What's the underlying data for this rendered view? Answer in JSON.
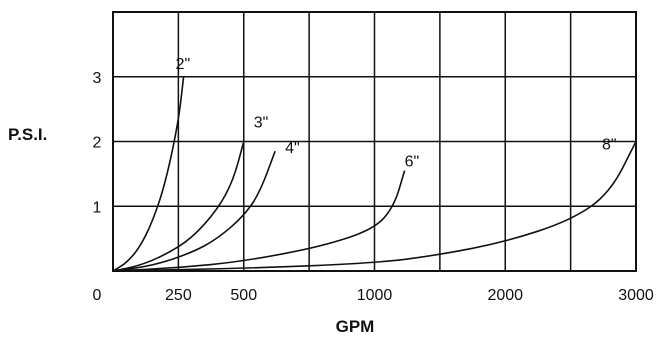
{
  "chart_data": {
    "type": "line",
    "title": "",
    "xlabel": "GPM",
    "ylabel": "P.S.I.",
    "grid": true,
    "legend": "none",
    "x_tick_labels": [
      "0",
      "250",
      "500",
      "1000",
      "2000",
      "3000"
    ],
    "y_tick_labels": [
      "1",
      "2",
      "3"
    ],
    "ylim": [
      0,
      4
    ],
    "series": [
      {
        "name": "2\"",
        "x": [
          0,
          50,
          100,
          150,
          200,
          250,
          270
        ],
        "y": [
          0,
          0.12,
          0.35,
          0.75,
          1.35,
          2.3,
          3.0
        ]
      },
      {
        "name": "3\"",
        "x": [
          0,
          100,
          200,
          300,
          400,
          460,
          500
        ],
        "y": [
          0,
          0.08,
          0.25,
          0.5,
          0.95,
          1.4,
          2.0
        ]
      },
      {
        "name": "4\"",
        "x": [
          0,
          150,
          300,
          400,
          500,
          560,
          620
        ],
        "y": [
          0,
          0.08,
          0.28,
          0.5,
          0.85,
          1.2,
          1.85
        ]
      },
      {
        "name": "6\"",
        "x": [
          0,
          250,
          500,
          800,
          1000,
          1150,
          1230
        ],
        "y": [
          0,
          0.05,
          0.15,
          0.38,
          0.65,
          1.0,
          1.55
        ]
      },
      {
        "name": "8\"",
        "x": [
          0,
          500,
          1000,
          1500,
          2000,
          2500,
          2800,
          3000
        ],
        "y": [
          0,
          0.04,
          0.12,
          0.25,
          0.45,
          0.78,
          1.2,
          2.0
        ]
      }
    ]
  }
}
